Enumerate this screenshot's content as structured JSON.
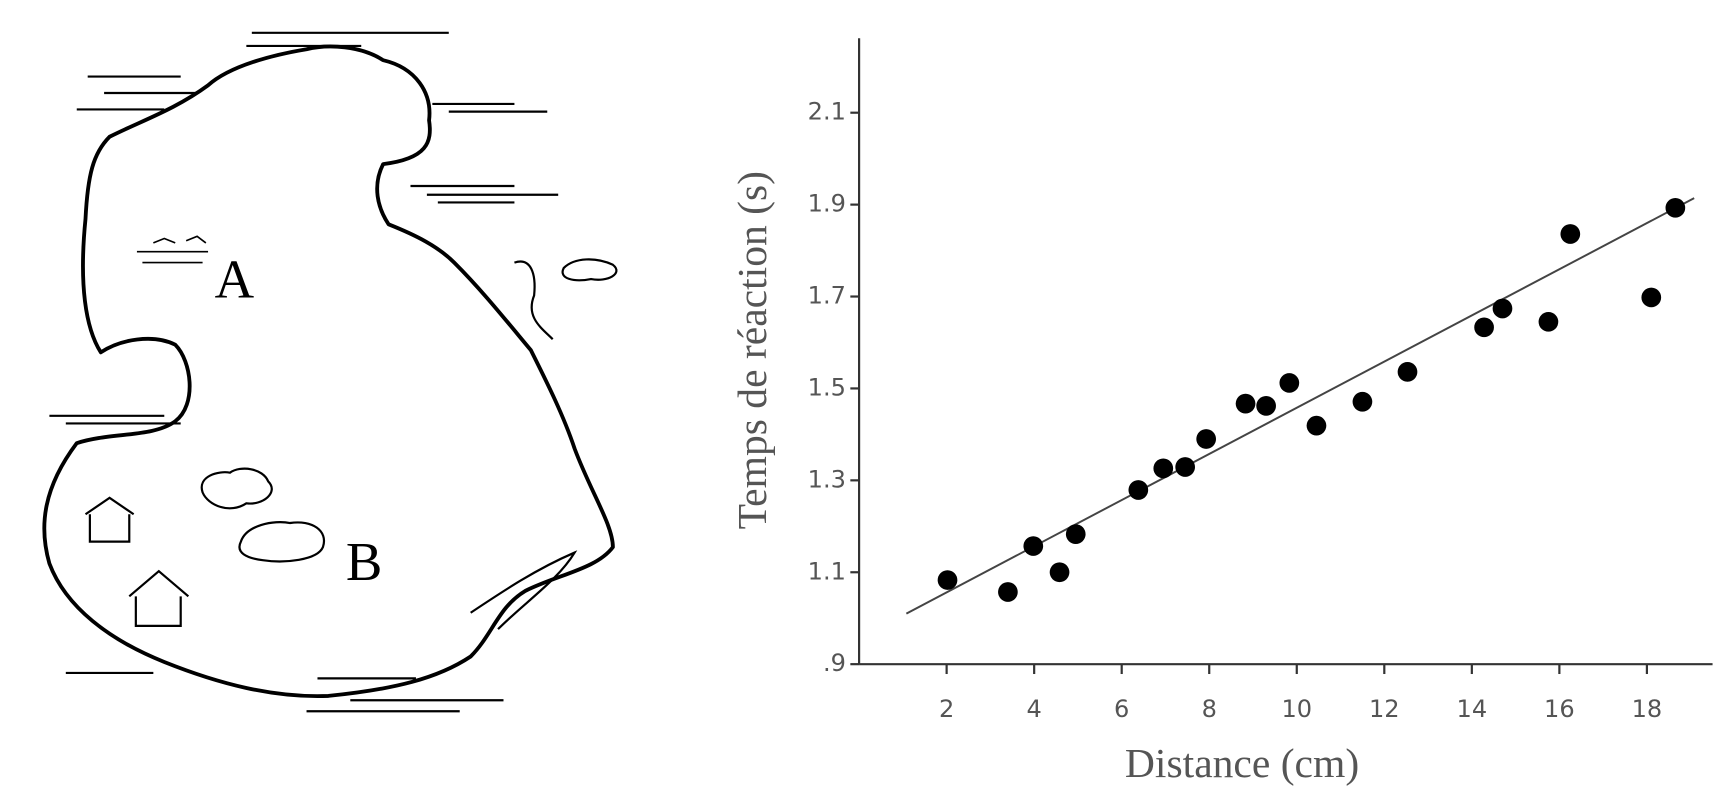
{
  "map": {
    "labels": [
      "A",
      "B"
    ]
  },
  "chart_data": {
    "type": "scatter",
    "x_label": "Distance (cm)",
    "y_label": "Temps de réaction (s)",
    "x": [
      2.02,
      3.4,
      3.98,
      4.58,
      4.95,
      6.38,
      6.95,
      7.45,
      7.93,
      8.83,
      9.3,
      9.83,
      10.45,
      11.5,
      12.53,
      14.28,
      14.7,
      15.75,
      16.25,
      18.1,
      18.65
    ],
    "values": [
      1.083,
      1.057,
      1.157,
      1.1,
      1.183,
      1.279,
      1.326,
      1.329,
      1.39,
      1.467,
      1.462,
      1.512,
      1.419,
      1.471,
      1.536,
      1.633,
      1.674,
      1.645,
      1.836,
      1.698,
      1.893
    ],
    "color": "#000000",
    "trendline": {
      "x": [
        1.08,
        19.08
      ],
      "values": [
        1.01,
        1.914
      ]
    },
    "xlim": [
      0,
      19.375
    ],
    "ylim": [
      0.9,
      2.25
    ],
    "xticks": [
      2,
      4,
      6,
      8,
      10,
      12,
      14,
      16,
      18
    ],
    "yticks": [
      {
        "value": 0.9,
        "label": ".9"
      },
      1.1,
      1.3,
      1.5,
      1.7,
      1.9,
      2.1
    ]
  }
}
